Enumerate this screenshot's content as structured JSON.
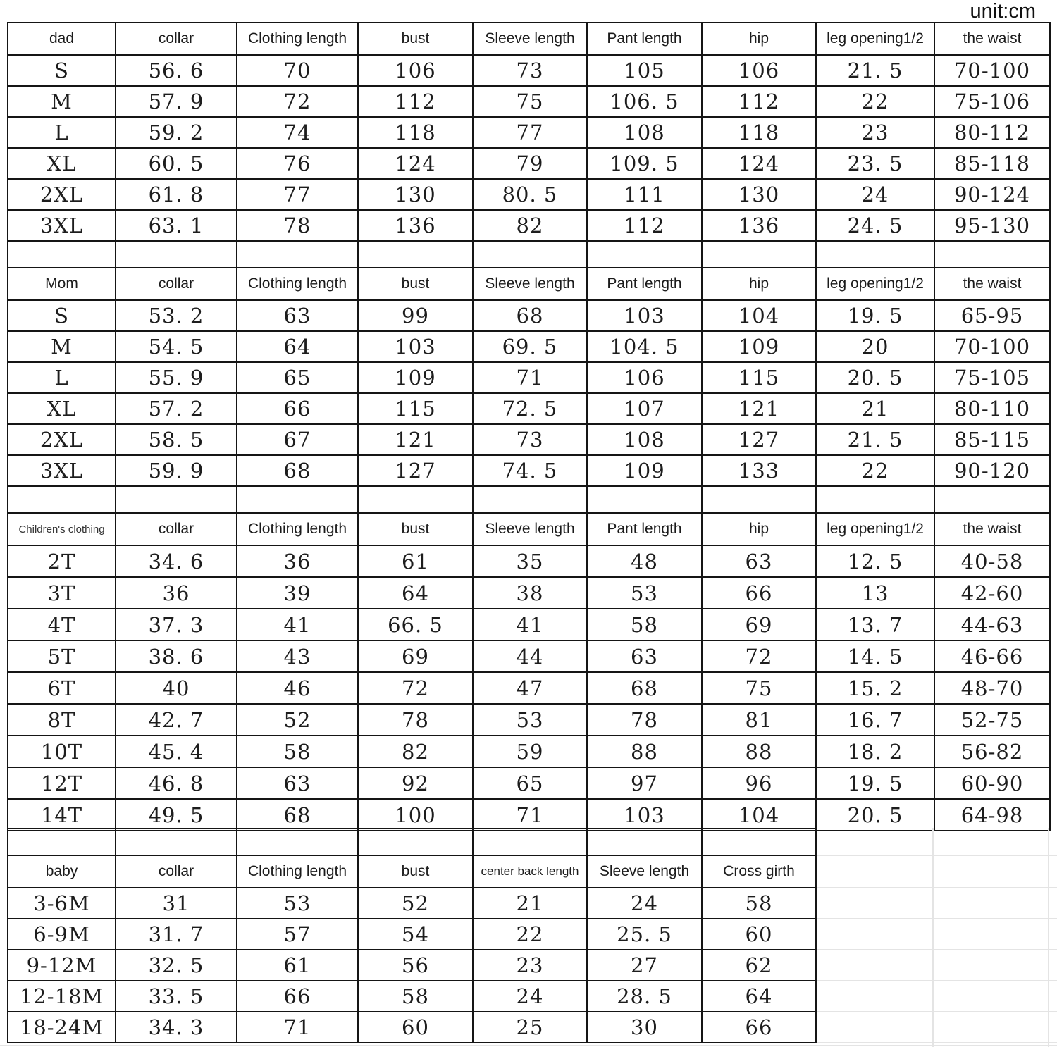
{
  "unit_label": "unit:cm",
  "tables": {
    "dad": {
      "headers": [
        "dad",
        "collar",
        "Clothing length",
        "bust",
        "Sleeve length",
        "Pant length",
        "hip",
        "leg opening1/2",
        "the waist"
      ],
      "rows": [
        [
          "S",
          "56. 6",
          "70",
          "106",
          "73",
          "105",
          "106",
          "21. 5",
          "70-100"
        ],
        [
          "M",
          "57. 9",
          "72",
          "112",
          "75",
          "106. 5",
          "112",
          "22",
          "75-106"
        ],
        [
          "L",
          "59. 2",
          "74",
          "118",
          "77",
          "108",
          "118",
          "23",
          "80-112"
        ],
        [
          "XL",
          "60. 5",
          "76",
          "124",
          "79",
          "109. 5",
          "124",
          "23. 5",
          "85-118"
        ],
        [
          "2XL",
          "61. 8",
          "77",
          "130",
          "80. 5",
          "111",
          "130",
          "24",
          "90-124"
        ],
        [
          "3XL",
          "63. 1",
          "78",
          "136",
          "82",
          "112",
          "136",
          "24. 5",
          "95-130"
        ]
      ]
    },
    "mom": {
      "headers": [
        "Mom",
        "collar",
        "Clothing length",
        "bust",
        "Sleeve length",
        "Pant length",
        "hip",
        "leg opening1/2",
        "the waist"
      ],
      "rows": [
        [
          "S",
          "53. 2",
          "63",
          "99",
          "68",
          "103",
          "104",
          "19. 5",
          "65-95"
        ],
        [
          "M",
          "54. 5",
          "64",
          "103",
          "69. 5",
          "104. 5",
          "109",
          "20",
          "70-100"
        ],
        [
          "L",
          "55. 9",
          "65",
          "109",
          "71",
          "106",
          "115",
          "20. 5",
          "75-105"
        ],
        [
          "XL",
          "57. 2",
          "66",
          "115",
          "72. 5",
          "107",
          "121",
          "21",
          "80-110"
        ],
        [
          "2XL",
          "58. 5",
          "67",
          "121",
          "73",
          "108",
          "127",
          "21. 5",
          "85-115"
        ],
        [
          "3XL",
          "59. 9",
          "68",
          "127",
          "74. 5",
          "109",
          "133",
          "22",
          "90-120"
        ]
      ]
    },
    "children": {
      "headers": [
        "Children's clothing",
        "collar",
        "Clothing length",
        "bust",
        "Sleeve length",
        "Pant length",
        "hip",
        "leg opening1/2",
        "the waist"
      ],
      "rows": [
        [
          "2T",
          "34. 6",
          "36",
          "61",
          "35",
          "48",
          "63",
          "12. 5",
          "40-58"
        ],
        [
          "3T",
          "36",
          "39",
          "64",
          "38",
          "53",
          "66",
          "13",
          "42-60"
        ],
        [
          "4T",
          "37. 3",
          "41",
          "66. 5",
          "41",
          "58",
          "69",
          "13. 7",
          "44-63"
        ],
        [
          "5T",
          "38. 6",
          "43",
          "69",
          "44",
          "63",
          "72",
          "14. 5",
          "46-66"
        ],
        [
          "6T",
          "40",
          "46",
          "72",
          "47",
          "68",
          "75",
          "15. 2",
          "48-70"
        ],
        [
          "8T",
          "42. 7",
          "52",
          "78",
          "53",
          "78",
          "81",
          "16. 7",
          "52-75"
        ],
        [
          "10T",
          "45. 4",
          "58",
          "82",
          "59",
          "88",
          "88",
          "18. 2",
          "56-82"
        ],
        [
          "12T",
          "46. 8",
          "63",
          "92",
          "65",
          "97",
          "96",
          "19. 5",
          "60-90"
        ],
        [
          "14T",
          "49. 5",
          "68",
          "100",
          "71",
          "103",
          "104",
          "20. 5",
          "64-98"
        ]
      ]
    },
    "baby": {
      "headers": [
        "baby",
        "collar",
        "Clothing length",
        "bust",
        "center back length",
        "Sleeve length",
        "Cross girth"
      ],
      "rows": [
        [
          "3-6M",
          "31",
          "53",
          "52",
          "21",
          "24",
          "58"
        ],
        [
          "6-9M",
          "31. 7",
          "57",
          "54",
          "22",
          "25. 5",
          "60"
        ],
        [
          "9-12M",
          "32. 5",
          "61",
          "56",
          "23",
          "27",
          "62"
        ],
        [
          "12-18M",
          "33. 5",
          "66",
          "58",
          "24",
          "28. 5",
          "64"
        ],
        [
          "18-24M",
          "34. 3",
          "71",
          "60",
          "25",
          "30",
          "66"
        ]
      ]
    }
  }
}
